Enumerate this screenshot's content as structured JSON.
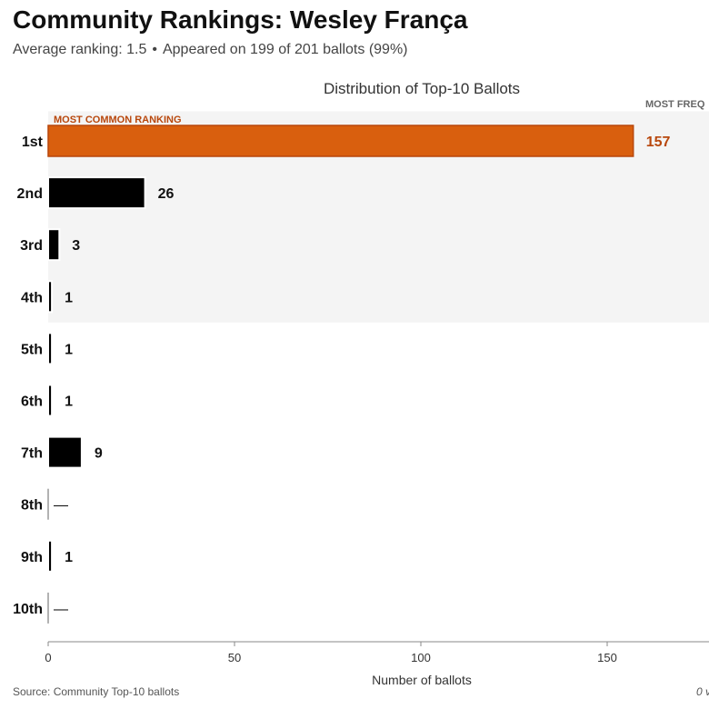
{
  "header": {
    "title": "Community Rankings: Wesley França",
    "avg_label": "Average ranking: 1.5",
    "separator": "•",
    "appearance_label": "Appeared on 199 of 201 ballots (99%)"
  },
  "chart_data": {
    "type": "bar",
    "orientation": "horizontal",
    "title": "Distribution of Top-10 Ballots",
    "xlabel": "Number of ballots",
    "ylabel": "",
    "categories": [
      "1st",
      "2nd",
      "3rd",
      "4th",
      "5th",
      "6th",
      "7th",
      "8th",
      "9th",
      "10th"
    ],
    "values": [
      157,
      26,
      3,
      1,
      1,
      1,
      9,
      0,
      1,
      0
    ],
    "value_labels": [
      "157",
      "26",
      "3",
      "1",
      "1",
      "1",
      "9",
      "—",
      "1",
      "—"
    ],
    "xlim": [
      0,
      177
    ],
    "xticks": [
      0,
      50,
      100,
      150
    ],
    "grid": false,
    "highlight": {
      "category": "1st",
      "label": "MOST COMMON RANKING",
      "color": "#d95f0e",
      "label_color": "#b8470c"
    },
    "shaded_band": {
      "from": "1st",
      "to": "4th",
      "label": "MOST FREQ",
      "color": "#f4f4f4"
    },
    "bar_color": "#000000"
  },
  "footer": {
    "source": "Source: Community Top-10 ballots",
    "note": "0 v"
  }
}
